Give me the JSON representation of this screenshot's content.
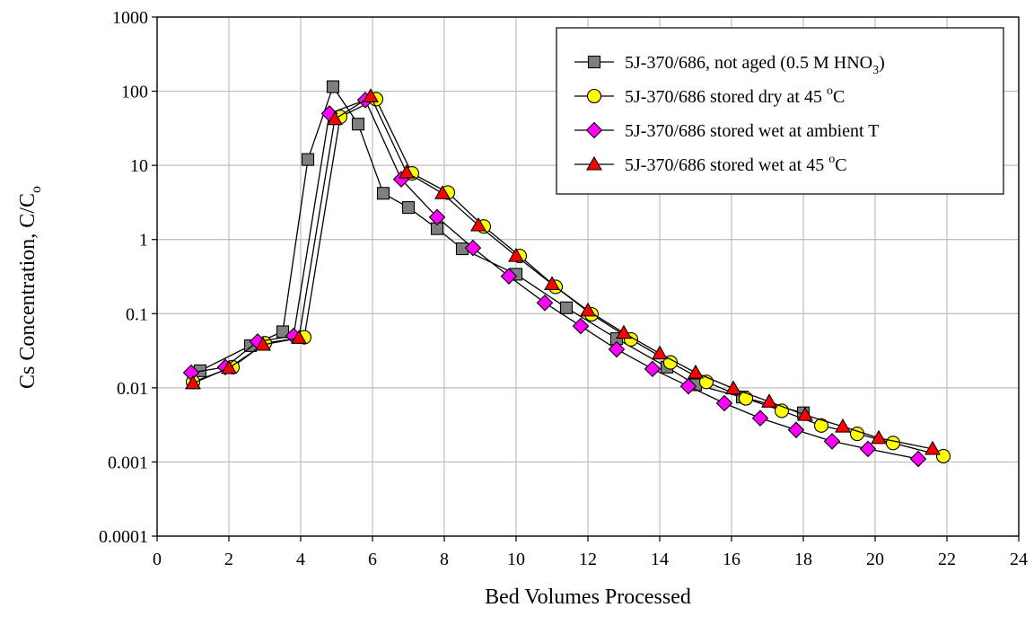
{
  "chart_data": {
    "type": "scatter",
    "title": "",
    "xlabel": "Bed Volumes Processed",
    "ylabel": "Cs Concentration, C/C",
    "ylabel_subscript": "o",
    "x_range": [
      0,
      24
    ],
    "x_ticks": [
      0,
      2,
      4,
      6,
      8,
      10,
      12,
      14,
      16,
      18,
      20,
      22,
      24
    ],
    "y_scale": "log",
    "y_range": [
      0.0001,
      1000
    ],
    "y_ticks": [
      0.0001,
      0.001,
      0.01,
      0.1,
      1,
      10,
      100,
      1000
    ],
    "y_tick_labels": [
      "0.0001",
      "0.001",
      "0.01",
      "0.1",
      "1",
      "10",
      "100",
      "1000"
    ],
    "grid": true,
    "legend_position": "top-right",
    "series": [
      {
        "name": "5J-370/686, not aged (0.5 M HNO",
        "name_subscript": "3",
        "name_suffix": ")",
        "marker": "square",
        "color": "#7f7f7f",
        "points": [
          [
            1.2,
            0.017
          ],
          [
            2.6,
            0.037
          ],
          [
            3.5,
            0.057
          ],
          [
            4.2,
            12
          ],
          [
            4.9,
            115
          ],
          [
            5.6,
            36
          ],
          [
            6.3,
            4.2
          ],
          [
            7.0,
            2.7
          ],
          [
            7.8,
            1.4
          ],
          [
            8.5,
            0.75
          ],
          [
            10.0,
            0.34
          ],
          [
            11.4,
            0.12
          ],
          [
            12.8,
            0.046
          ],
          [
            14.2,
            0.019
          ],
          [
            15.0,
            0.011
          ],
          [
            16.3,
            0.0075
          ],
          [
            18.0,
            0.0046
          ]
        ]
      },
      {
        "name": "5J-370/686 stored dry at 45 ",
        "name_superscript": "o",
        "name_suffix": "C",
        "marker": "circle",
        "color": "#ffff00",
        "points": [
          [
            1.0,
            0.012
          ],
          [
            2.1,
            0.019
          ],
          [
            3.0,
            0.04
          ],
          [
            4.1,
            0.048
          ],
          [
            5.1,
            45
          ],
          [
            6.1,
            78
          ],
          [
            7.1,
            7.8
          ],
          [
            8.1,
            4.3
          ],
          [
            9.1,
            1.5
          ],
          [
            10.1,
            0.6
          ],
          [
            11.1,
            0.23
          ],
          [
            12.1,
            0.098
          ],
          [
            13.2,
            0.045
          ],
          [
            14.3,
            0.022
          ],
          [
            15.3,
            0.012
          ],
          [
            16.4,
            0.0072
          ],
          [
            17.4,
            0.0049
          ],
          [
            18.5,
            0.0031
          ],
          [
            19.5,
            0.0024
          ],
          [
            20.5,
            0.0018
          ],
          [
            21.9,
            0.0012
          ]
        ]
      },
      {
        "name": "5J-370/686 stored wet at ambient T",
        "marker": "diamond",
        "color": "#ff00ff",
        "points": [
          [
            0.95,
            0.016
          ],
          [
            1.9,
            0.019
          ],
          [
            2.8,
            0.042
          ],
          [
            3.8,
            0.05
          ],
          [
            4.8,
            50
          ],
          [
            5.8,
            76
          ],
          [
            6.8,
            6.5
          ],
          [
            7.8,
            2.0
          ],
          [
            8.8,
            0.77
          ],
          [
            9.8,
            0.32
          ],
          [
            10.8,
            0.14
          ],
          [
            11.8,
            0.068
          ],
          [
            12.8,
            0.033
          ],
          [
            13.8,
            0.018
          ],
          [
            14.8,
            0.0105
          ],
          [
            15.8,
            0.0062
          ],
          [
            16.8,
            0.0039
          ],
          [
            17.8,
            0.0027
          ],
          [
            18.8,
            0.0019
          ],
          [
            19.8,
            0.0015
          ],
          [
            21.2,
            0.0011
          ]
        ]
      },
      {
        "name": "5J-370/686 stored wet at 45 ",
        "name_superscript": "o",
        "name_suffix": "C",
        "marker": "triangle",
        "color": "#ff0000",
        "points": [
          [
            1.0,
            0.0115
          ],
          [
            2.0,
            0.0185
          ],
          [
            2.95,
            0.038
          ],
          [
            3.95,
            0.047
          ],
          [
            4.95,
            42
          ],
          [
            5.95,
            85
          ],
          [
            6.95,
            8.0
          ],
          [
            7.95,
            4.2
          ],
          [
            8.95,
            1.55
          ],
          [
            10.0,
            0.6
          ],
          [
            11.0,
            0.25
          ],
          [
            12.0,
            0.11
          ],
          [
            13.0,
            0.055
          ],
          [
            14.0,
            0.029
          ],
          [
            15.0,
            0.016
          ],
          [
            16.05,
            0.0098
          ],
          [
            17.05,
            0.0065
          ],
          [
            18.05,
            0.0043
          ],
          [
            19.1,
            0.003
          ],
          [
            20.1,
            0.0021
          ],
          [
            21.6,
            0.0015
          ]
        ]
      }
    ]
  }
}
